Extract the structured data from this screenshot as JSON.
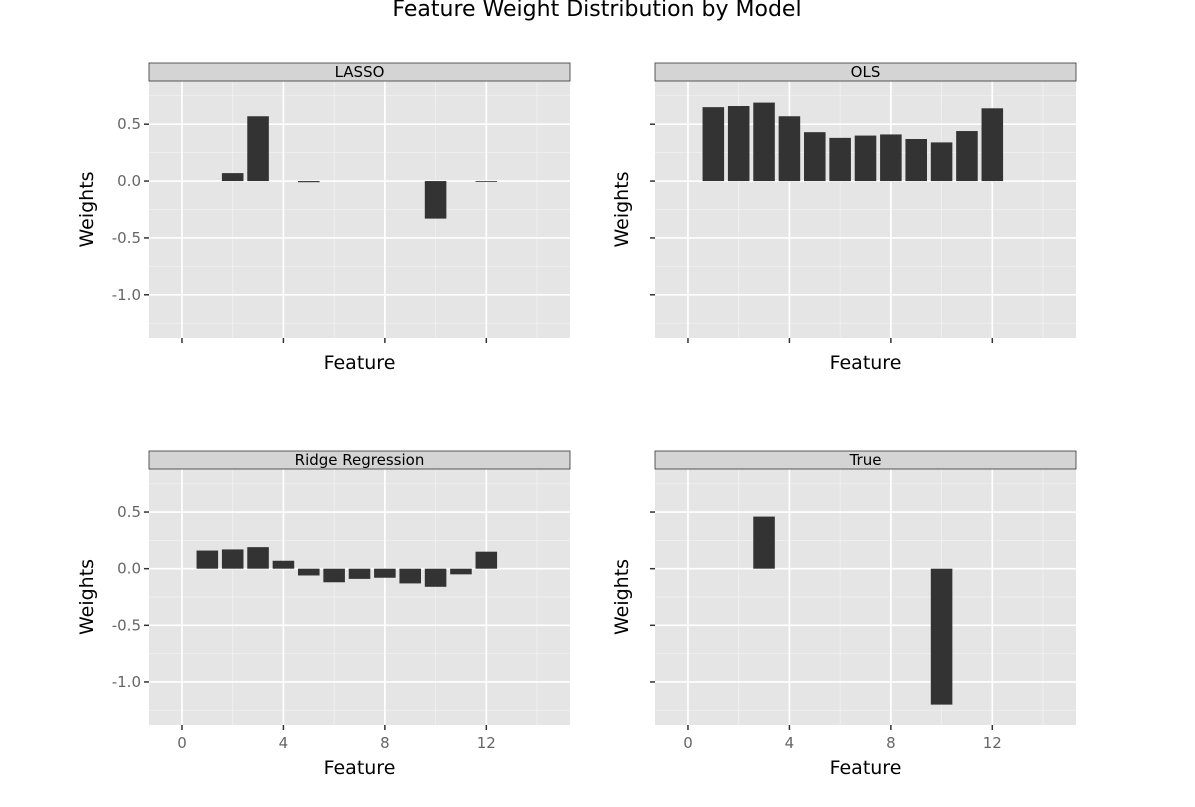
{
  "chart_data": {
    "type": "bar",
    "title": "Feature Weight Distribution by Model",
    "xlabel": "Feature",
    "ylabel": "Weights",
    "x": [
      0,
      1,
      2,
      3,
      4,
      5,
      6,
      7,
      8,
      9,
      10,
      11,
      12,
      13
    ],
    "xlim": [
      -1.3,
      15.3
    ],
    "ylim": [
      -1.38,
      0.88
    ],
    "xticks": [
      0,
      4,
      8,
      12
    ],
    "xtick_labels": [
      "0",
      "4",
      "8",
      "12"
    ],
    "yticks": [
      0.5,
      0.0,
      -0.5,
      -1.0
    ],
    "ytick_labels": [
      "0.5",
      "0.0",
      "-0.5",
      "-1.0"
    ],
    "grid": true,
    "legend": "none",
    "facets": [
      "LASSO",
      "OLS",
      "Ridge Regression",
      "True"
    ],
    "series": [
      {
        "name": "LASSO",
        "values": [
          0.0,
          0.0,
          0.07,
          0.57,
          0.0,
          -0.01,
          0.0,
          0.0,
          0.0,
          0.0,
          -0.33,
          0.0,
          -0.005,
          0.0
        ]
      },
      {
        "name": "OLS",
        "values": [
          0.0,
          0.65,
          0.66,
          0.69,
          0.57,
          0.43,
          0.38,
          0.4,
          0.41,
          0.37,
          0.34,
          0.44,
          0.64,
          0.0
        ]
      },
      {
        "name": "Ridge Regression",
        "values": [
          0.0,
          0.16,
          0.17,
          0.19,
          0.07,
          -0.06,
          -0.12,
          -0.09,
          -0.08,
          -0.13,
          -0.16,
          -0.05,
          0.15,
          0.0
        ]
      },
      {
        "name": "True",
        "values": [
          0.0,
          0.0,
          0.0,
          0.46,
          0.0,
          0.0,
          0.0,
          0.0,
          0.0,
          0.0,
          -1.2,
          0.0,
          0.0,
          0.0
        ]
      }
    ]
  }
}
